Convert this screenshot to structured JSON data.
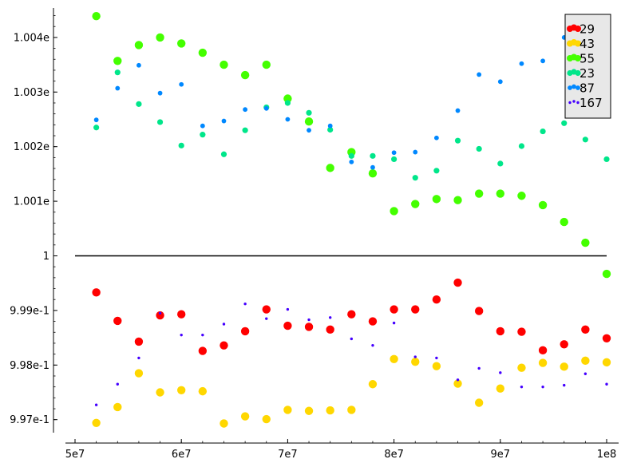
{
  "chart_data": {
    "type": "scatter",
    "title": "",
    "xlabel": "",
    "ylabel": "",
    "xlim": [
      50000000,
      100000000
    ],
    "ylim": [
      0.99675,
      1.00455
    ],
    "x_ticks": [
      {
        "value": 50000000,
        "label": "5e7"
      },
      {
        "value": 60000000,
        "label": "6e7"
      },
      {
        "value": 70000000,
        "label": "7e7"
      },
      {
        "value": 80000000,
        "label": "8e7"
      },
      {
        "value": 90000000,
        "label": "9e7"
      },
      {
        "value": 100000000,
        "label": "1e8"
      }
    ],
    "y_ticks": [
      {
        "value": 0.997,
        "label": "9.97e-1"
      },
      {
        "value": 0.998,
        "label": "9.98e-1"
      },
      {
        "value": 0.999,
        "label": "9.99e-1"
      },
      {
        "value": 1.0,
        "label": "1"
      },
      {
        "value": 1.001,
        "label": "1.001e"
      },
      {
        "value": 1.002,
        "label": "1.002e"
      },
      {
        "value": 1.003,
        "label": "1.003e"
      },
      {
        "value": 1.004,
        "label": "1.004e"
      }
    ],
    "reference_line": {
      "y": 1.0,
      "x": [
        50000000,
        100000000
      ],
      "color": "#000000"
    },
    "legend_position": "top-right",
    "x": [
      52000000,
      54000000,
      56000000,
      58000000,
      60000000,
      62000000,
      64000000,
      66000000,
      68000000,
      70000000,
      72000000,
      74000000,
      76000000,
      78000000,
      80000000,
      82000000,
      84000000,
      86000000,
      88000000,
      90000000,
      92000000,
      94000000,
      96000000,
      98000000,
      100000000
    ],
    "series": [
      {
        "name": "29",
        "color": "#ff0000",
        "marker_size": "large",
        "values": [
          0.99933,
          0.99881,
          0.99843,
          0.99891,
          0.99893,
          0.99826,
          0.99836,
          0.99862,
          0.99902,
          0.99872,
          0.9987,
          0.99865,
          0.99893,
          0.9988,
          0.99902,
          0.99902,
          0.9992,
          0.99951,
          0.99899,
          0.99862,
          0.99861,
          0.99827,
          0.99838,
          0.99865,
          0.99849
        ]
      },
      {
        "name": "43",
        "color": "#ffd700",
        "marker_size": "large",
        "values": [
          0.99694,
          0.99723,
          0.99785,
          0.9975,
          0.99754,
          0.99752,
          0.99693,
          0.99706,
          0.99701,
          0.99718,
          0.99716,
          0.99717,
          0.99718,
          0.99765,
          0.99811,
          0.99806,
          0.99798,
          0.99766,
          0.99731,
          0.99757,
          0.99795,
          0.99804,
          0.99797,
          0.99808,
          0.99805
        ]
      },
      {
        "name": "55",
        "color": "#44ff00",
        "marker_size": "large",
        "values": [
          1.00439,
          1.00357,
          1.00386,
          1.004,
          1.00389,
          1.00372,
          1.0035,
          1.00331,
          1.0035,
          1.00288,
          1.00246,
          1.00161,
          1.0019,
          1.00151,
          1.00082,
          1.00095,
          1.00104,
          1.00102,
          1.00114,
          1.00114,
          1.0011,
          1.00093,
          1.00062,
          1.00024,
          0.99967
        ]
      },
      {
        "name": "23",
        "color": "#00e68a",
        "marker_size": "medium",
        "values": [
          1.00235,
          1.00336,
          1.00278,
          1.00245,
          1.00202,
          1.00222,
          1.00186,
          1.0023,
          1.00272,
          1.0028,
          1.00262,
          1.00231,
          1.00183,
          1.00183,
          1.00177,
          1.00143,
          1.00156,
          1.00211,
          1.00196,
          1.00169,
          1.00201,
          1.00228,
          1.00243,
          1.00213,
          1.00177
        ]
      },
      {
        "name": "87",
        "color": "#0088ff",
        "marker_size": "small",
        "values": [
          1.00249,
          1.00307,
          1.00349,
          1.00298,
          1.00314,
          1.00238,
          1.00247,
          1.00268,
          1.0027,
          1.0025,
          1.0023,
          1.00238,
          1.00172,
          1.00162,
          1.00189,
          1.0019,
          1.00216,
          1.00266,
          1.00332,
          1.00319,
          1.00352,
          1.00357,
          1.004,
          1.00373,
          1.00394
        ]
      },
      {
        "name": "167",
        "color": "#4400ff",
        "marker_size": "tiny",
        "values": [
          0.99727,
          0.99765,
          0.99813,
          0.99895,
          0.99855,
          0.99855,
          0.99875,
          0.99912,
          0.99885,
          0.99902,
          0.99883,
          0.99887,
          0.99848,
          0.99836,
          0.99877,
          0.99815,
          0.99813,
          0.99773,
          0.99794,
          0.99786,
          0.9976,
          0.9976,
          0.99763,
          0.99784,
          0.99765
        ]
      }
    ]
  }
}
